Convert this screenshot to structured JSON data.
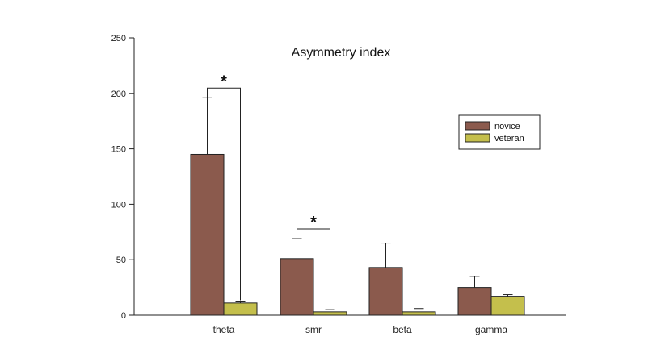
{
  "chart_data": {
    "type": "bar",
    "title": "Asymmetry index",
    "xlabel": "",
    "ylabel": "",
    "ylim": [
      0,
      250
    ],
    "yticks": [
      0,
      50,
      100,
      150,
      200,
      250
    ],
    "categories": [
      "theta",
      "smr",
      "beta",
      "gamma"
    ],
    "series": [
      {
        "name": "novice",
        "color": "#8B5A4D",
        "values": [
          145,
          51,
          43,
          25
        ],
        "errors": [
          51,
          18,
          22,
          10
        ]
      },
      {
        "name": "veteran",
        "color": "#C4BF4C",
        "values": [
          11,
          3,
          3,
          17
        ],
        "errors": [
          1,
          2,
          3,
          1.5
        ]
      }
    ],
    "legend": "top-right",
    "grid": false,
    "significance": [
      {
        "category": "theta",
        "label": "*"
      },
      {
        "category": "smr",
        "label": "*"
      }
    ]
  }
}
